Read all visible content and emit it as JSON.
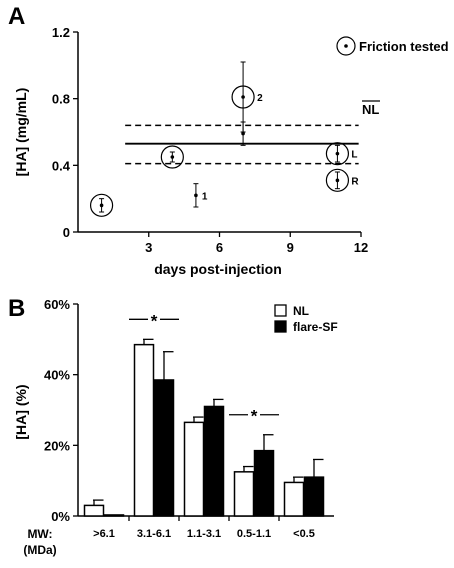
{
  "chart_data": [
    {
      "type": "scatter",
      "panel_label": "A",
      "xlabel": "days post-injection",
      "ylabel": "[HA] (mg/mL)",
      "xlim": [
        0,
        12
      ],
      "ylim": [
        0,
        1.2
      ],
      "x_ticks": [
        "3",
        "6",
        "9",
        "12"
      ],
      "y_ticks": [
        "0",
        "0.4",
        "0.8",
        "1.2"
      ],
      "legend": {
        "label": "Friction tested",
        "placement": "top-right"
      },
      "reference": {
        "label": "NL",
        "mean": 0.53,
        "band": [
          0.41,
          0.64
        ]
      },
      "series": [
        {
          "points": [
            {
              "x": 1,
              "y": 0.16,
              "err": 0.04,
              "circled": true,
              "label": ""
            },
            {
              "x": 4,
              "y": 0.45,
              "err": 0.03,
              "circled": true,
              "label": ""
            },
            {
              "x": 5,
              "y": 0.22,
              "err": 0.07,
              "circled": false,
              "label": "1"
            },
            {
              "x": 7,
              "y": 0.81,
              "err": 0.21,
              "circled": true,
              "label": "2"
            },
            {
              "x": 7,
              "y": 0.59,
              "err": 0.07,
              "circled": false,
              "label": ""
            },
            {
              "x": 11,
              "y": 0.47,
              "err": 0.05,
              "circled": true,
              "label": "L"
            },
            {
              "x": 11,
              "y": 0.31,
              "err": 0.05,
              "circled": true,
              "label": "R"
            }
          ]
        }
      ]
    },
    {
      "type": "bar",
      "panel_label": "B",
      "ylabel": "[HA] (%)",
      "xlabel": "MW:\n(MDa)",
      "xlabel_lines": [
        "MW:",
        "(MDa)"
      ],
      "ylim": [
        0,
        60
      ],
      "y_ticks": [
        "0%",
        "20%",
        "40%",
        "60%"
      ],
      "categories": [
        ">6.1",
        "3.1-6.1",
        "1.1-3.1",
        "0.5-1.1",
        "<0.5"
      ],
      "series": [
        {
          "name": "NL",
          "color": "#ffffff",
          "values": [
            3,
            48.5,
            26.5,
            12.5,
            9.5
          ],
          "errors": [
            1.5,
            1.5,
            1.5,
            1.5,
            1.5
          ]
        },
        {
          "name": "flare-SF",
          "color": "#000000",
          "values": [
            0.3,
            38.5,
            31,
            18.5,
            11
          ],
          "errors": [
            0,
            8,
            2,
            4.5,
            5
          ]
        }
      ],
      "significance": [
        {
          "categories": [
            "3.1-6.1"
          ],
          "label": "*"
        },
        {
          "categories": [
            "0.5-1.1"
          ],
          "label": "*"
        }
      ],
      "legend": {
        "placement": "top-right"
      }
    }
  ]
}
